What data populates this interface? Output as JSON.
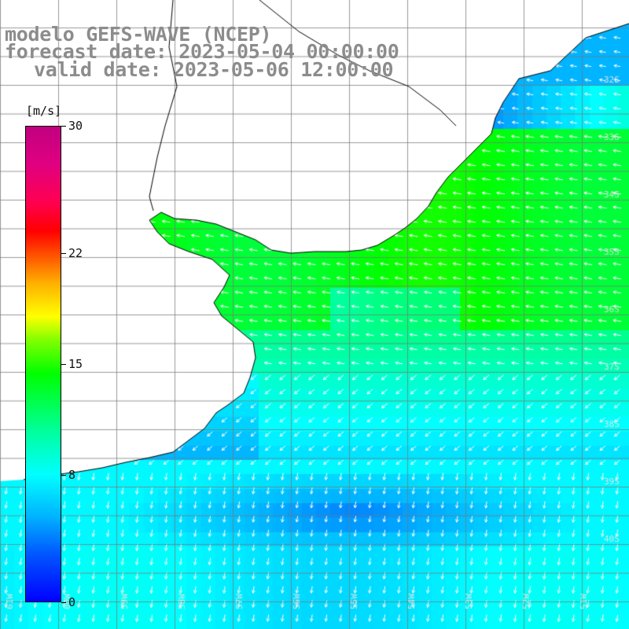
{
  "title": {
    "model": "modelo GEFS-WAVE (NCEP)",
    "forecast": "forecast date: 2023-05-04 00:00:00",
    "valid": "valid date: 2023-05-06 12:00:00"
  },
  "colorbar": {
    "unit": "[m/s]",
    "min": 0,
    "max": 30,
    "ticks": [
      {
        "label": "30",
        "value": 30
      },
      {
        "label": "22",
        "value": 22
      },
      {
        "label": "15",
        "value": 15
      },
      {
        "label": "8",
        "value": 8
      },
      {
        "label": "0",
        "value": 0
      }
    ]
  },
  "map": {
    "lat_labels": [
      "32S",
      "33S",
      "34S",
      "35S",
      "36S",
      "37S",
      "38S",
      "39S",
      "40S"
    ],
    "lon_labels": [
      "61W",
      "60W",
      "59W",
      "58W",
      "57W",
      "56W",
      "55W",
      "54W",
      "53W",
      "52W",
      "51W"
    ],
    "land_color": "#ffffff",
    "coast_color": "#000000",
    "grid_color": "#888888",
    "arrow_color": "#ffffff"
  }
}
